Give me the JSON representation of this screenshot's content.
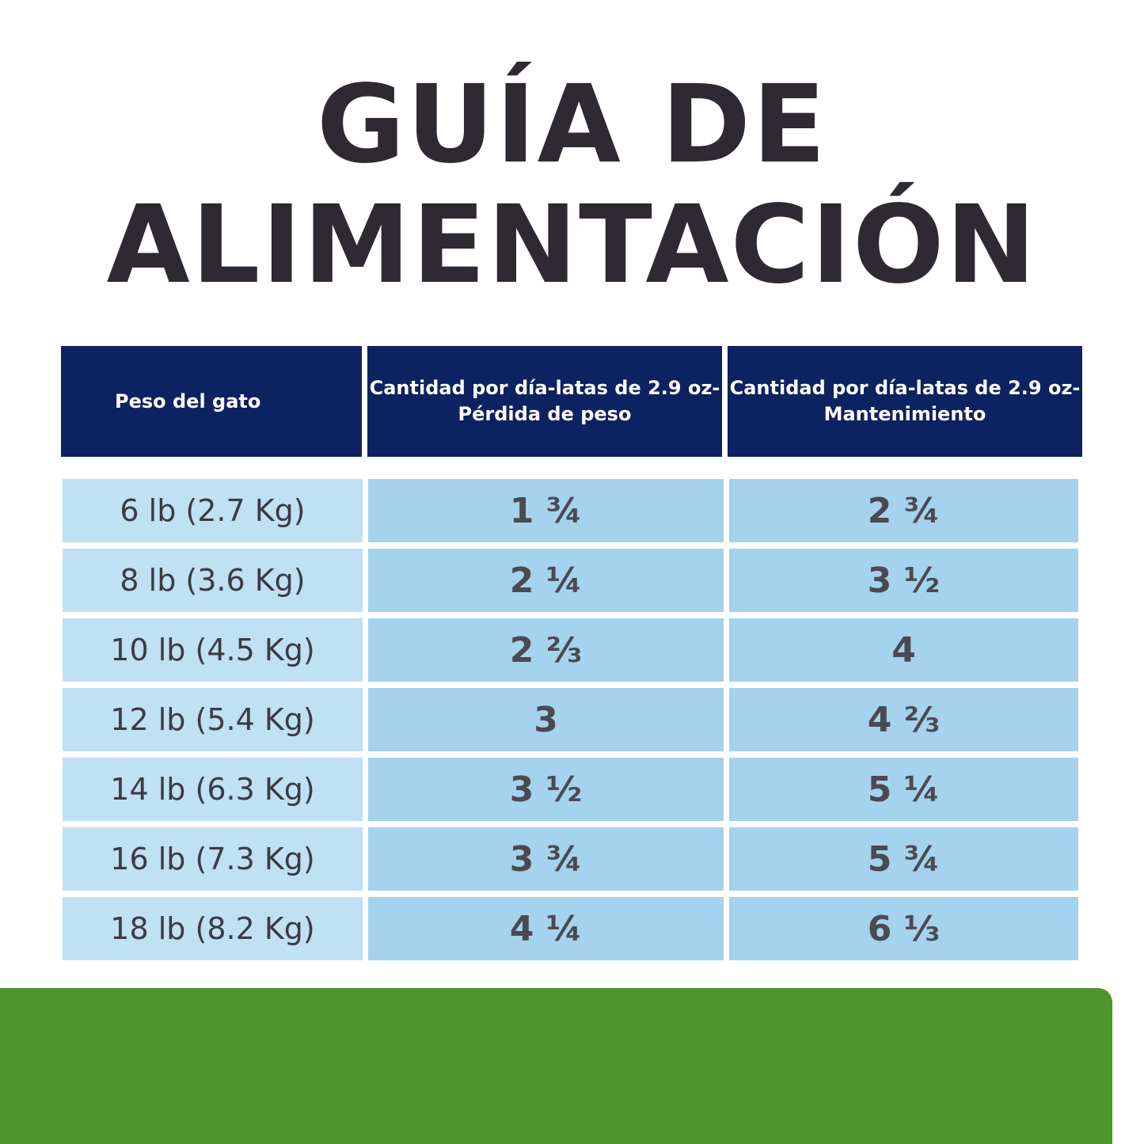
{
  "title": {
    "line1": "GUÍA DE",
    "line2": "ALIMENTACIÓN"
  },
  "table": {
    "headers": [
      "Peso del gato",
      "Cantidad por día-latas de 2.9 oz- Pérdida de peso",
      "Cantidad por día-latas de 2.9 oz-Mantenimiento"
    ],
    "rows": [
      {
        "weight": "6 lb (2.7 Kg)",
        "loss": "1 ¾",
        "maintenance": "2 ¾"
      },
      {
        "weight": "8 lb (3.6 Kg)",
        "loss": "2 ¼",
        "maintenance": "3 ½"
      },
      {
        "weight": "10 lb (4.5 Kg)",
        "loss": "2 ⅔",
        "maintenance": "4"
      },
      {
        "weight": "12 lb (5.4 Kg)",
        "loss": "3",
        "maintenance": "4 ⅔"
      },
      {
        "weight": "14 lb (6.3 Kg)",
        "loss": "3 ½",
        "maintenance": "5 ¼"
      },
      {
        "weight": "16 lb (7.3 Kg)",
        "loss": "3 ¾",
        "maintenance": "5 ¾"
      },
      {
        "weight": "18 lb (8.2 Kg)",
        "loss": "4 ¼",
        "maintenance": "6 ⅓"
      }
    ]
  },
  "colors": {
    "title": "#2f2a32",
    "header_bg": "#0d2260",
    "weight_col_bg": "#c0e0f3",
    "value_col_bg": "#a5d2ec",
    "footer_band": "#4c962d"
  }
}
